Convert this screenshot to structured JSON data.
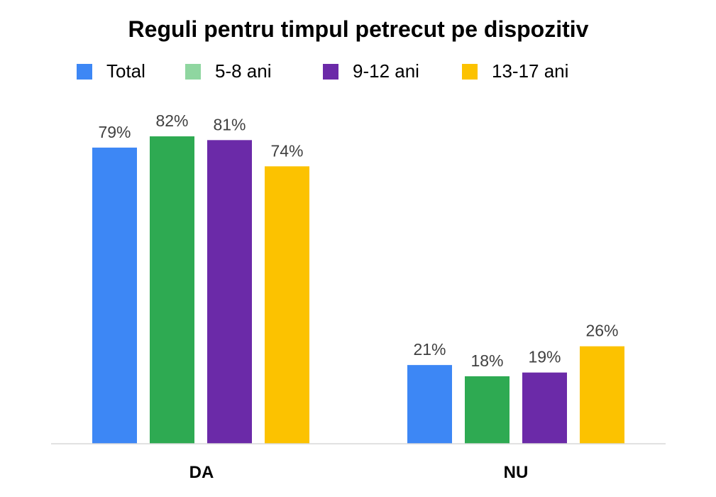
{
  "chart_data": {
    "type": "bar",
    "title": "Reguli pentru timpul petrecut pe dispozitiv",
    "xlabel": "",
    "ylabel": "",
    "categories": [
      "DA",
      "NU"
    ],
    "series": [
      {
        "name": "Total",
        "values": [
          79,
          21
        ],
        "labels": [
          "79%",
          "21%"
        ],
        "color": "#3d87f5"
      },
      {
        "name": "5-8 ani",
        "values": [
          82,
          18
        ],
        "labels": [
          "82%",
          "18%"
        ],
        "color": "#2eaa52"
      },
      {
        "name": "9-12 ani",
        "values": [
          81,
          19
        ],
        "labels": [
          "81%",
          "19%"
        ],
        "color": "#6b2aa8"
      },
      {
        "name": "13-17 ani",
        "values": [
          74,
          26
        ],
        "labels": [
          "74%",
          "26%"
        ],
        "color": "#fcc200"
      }
    ],
    "legend_colors": [
      "#3d87f5",
      "#8fd6a0",
      "#6b2aa8",
      "#fcc200"
    ],
    "ylim": [
      0,
      100
    ],
    "legend_position": "top",
    "grid": false,
    "axis_color": "#d9d9d9"
  }
}
